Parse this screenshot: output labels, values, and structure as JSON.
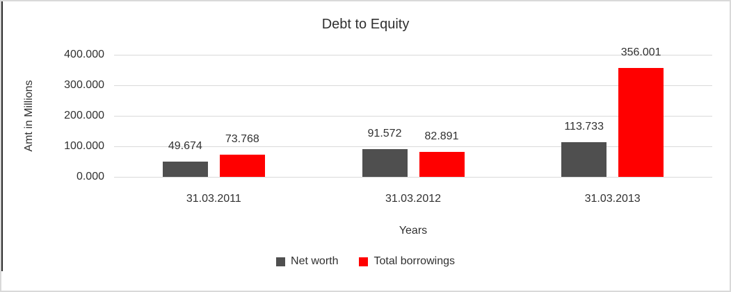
{
  "frame": {
    "border_color": "#d9d9d9",
    "left_rule_color": "#2b2b2b"
  },
  "colors": {
    "text": "#303030",
    "gridline": "#d9d9d9",
    "net_worth": "#4f4f4f",
    "total_borrowings": "#ff0000"
  },
  "chart_data": {
    "type": "bar",
    "title": "Debt to Equity",
    "xlabel": "Years",
    "ylabel": "Amt in Millions",
    "categories": [
      "31.03.2011",
      "31.03.2012",
      "31.03.2013"
    ],
    "series": [
      {
        "name": "Net worth",
        "color": "#4f4f4f",
        "values": [
          49.674,
          91.572,
          113.733
        ],
        "data_labels": [
          "49.674",
          "91.572",
          "113.733"
        ]
      },
      {
        "name": "Total borrowings",
        "color": "#ff0000",
        "values": [
          73.768,
          82.891,
          356.001
        ],
        "data_labels": [
          "73.768",
          "82.891",
          "356.001"
        ]
      }
    ],
    "yticks": [
      "0.000",
      "100.000",
      "200.000",
      "300.000",
      "400.000"
    ],
    "ylim": [
      0,
      400
    ],
    "grid": true,
    "legend_position": "bottom"
  }
}
